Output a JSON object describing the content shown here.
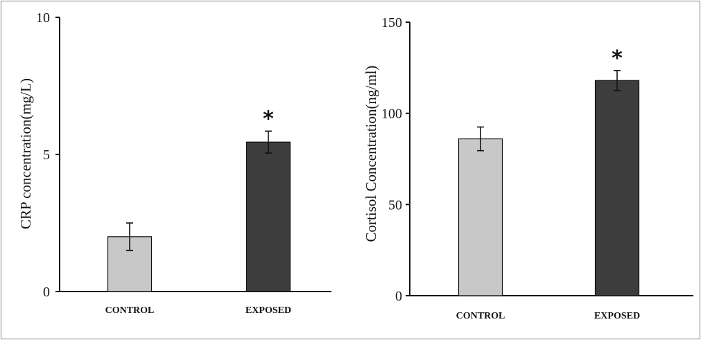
{
  "chart_data": [
    {
      "type": "bar",
      "categories": [
        "CONTROL",
        "EXPOSED"
      ],
      "values": [
        2.0,
        5.45
      ],
      "error": [
        0.5,
        0.4
      ],
      "significance": [
        "",
        "*"
      ],
      "ylabel": "CRP concentration(mg/L)",
      "xlabel": "",
      "ylim": [
        0,
        10
      ],
      "yticks": [
        0,
        5,
        10
      ],
      "colors": [
        "#c8c8c8",
        "#3d3d3d"
      ],
      "grid": false
    },
    {
      "type": "bar",
      "categories": [
        "CONTROL",
        "EXPOSED"
      ],
      "values": [
        86,
        118
      ],
      "error": [
        6.5,
        5.5
      ],
      "significance": [
        "",
        "*"
      ],
      "ylabel": "Cortisol Concentration(ng/ml)",
      "xlabel": "",
      "ylim": [
        0,
        150
      ],
      "yticks": [
        0,
        50,
        100,
        150
      ],
      "colors": [
        "#c8c8c8",
        "#3d3d3d"
      ],
      "grid": false
    }
  ]
}
